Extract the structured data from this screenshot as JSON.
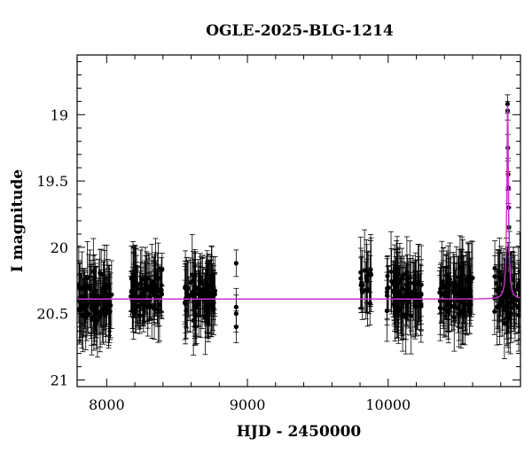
{
  "chart_data": {
    "type": "scatter",
    "title": "OGLE-2025-BLG-1214",
    "xlabel": "HJD - 2450000",
    "ylabel": "I magnitude",
    "xlim": [
      7790,
      10940
    ],
    "ylim": [
      21.05,
      18.55
    ],
    "y_inverted": true,
    "xticks": [
      8000,
      9000,
      10000
    ],
    "xtick_labels": [
      "8000",
      "9000",
      "10000"
    ],
    "yticks": [
      19,
      19.5,
      20,
      20.5,
      21
    ],
    "ytick_labels": [
      "19",
      "19.5",
      "20",
      "20.5",
      "21"
    ],
    "grid": false,
    "colors": {
      "points": "#000000",
      "errorbars": "#000000",
      "model": "#cc33cc",
      "frame": "#000000"
    },
    "seasons": [
      {
        "x_start": 7800,
        "x_end": 8035,
        "n": 95,
        "mag_mean": 20.4,
        "mag_spread": 0.24,
        "err": 0.22
      },
      {
        "x_start": 8170,
        "x_end": 8405,
        "n": 95,
        "mag_mean": 20.33,
        "mag_spread": 0.22,
        "err": 0.2
      },
      {
        "x_start": 8555,
        "x_end": 8770,
        "n": 95,
        "mag_mean": 20.35,
        "mag_spread": 0.24,
        "err": 0.22
      },
      {
        "x_start": 9800,
        "x_end": 9880,
        "n": 20,
        "mag_mean": 20.28,
        "mag_spread": 0.2,
        "err": 0.22
      },
      {
        "x_start": 9990,
        "x_end": 10240,
        "n": 95,
        "mag_mean": 20.35,
        "mag_spread": 0.24,
        "err": 0.22
      },
      {
        "x_start": 10360,
        "x_end": 10600,
        "n": 95,
        "mag_mean": 20.34,
        "mag_spread": 0.24,
        "err": 0.22
      },
      {
        "x_start": 10755,
        "x_end": 10940,
        "n": 80,
        "mag_mean": 20.36,
        "mag_spread": 0.24,
        "err": 0.22
      }
    ],
    "isolated_points": [
      {
        "x": 8920,
        "y": 20.12,
        "err": 0.1
      },
      {
        "x": 8920,
        "y": 20.45,
        "err": 0.14
      },
      {
        "x": 8920,
        "y": 20.5,
        "err": 0.14
      },
      {
        "x": 8920,
        "y": 20.6,
        "err": 0.12
      }
    ],
    "peak_points": [
      {
        "x": 10848,
        "y": 18.92,
        "err": 0.07
      },
      {
        "x": 10849,
        "y": 18.97,
        "err": 0.07
      },
      {
        "x": 10850,
        "y": 19.25,
        "err": 0.1
      },
      {
        "x": 10852,
        "y": 19.45,
        "err": 0.12
      },
      {
        "x": 10853,
        "y": 19.55,
        "err": 0.12
      },
      {
        "x": 10855,
        "y": 19.7,
        "err": 0.14
      },
      {
        "x": 10858,
        "y": 19.85,
        "err": 0.15
      },
      {
        "x": 10862,
        "y": 20.05,
        "err": 0.17
      },
      {
        "x": 10840,
        "y": 20.1,
        "err": 0.17
      },
      {
        "x": 10835,
        "y": 20.3,
        "err": 0.2
      }
    ],
    "model": {
      "name": "",
      "baseline_mag": 20.39,
      "t0": 10849,
      "peak_mag": 18.93,
      "width": 12
    }
  }
}
